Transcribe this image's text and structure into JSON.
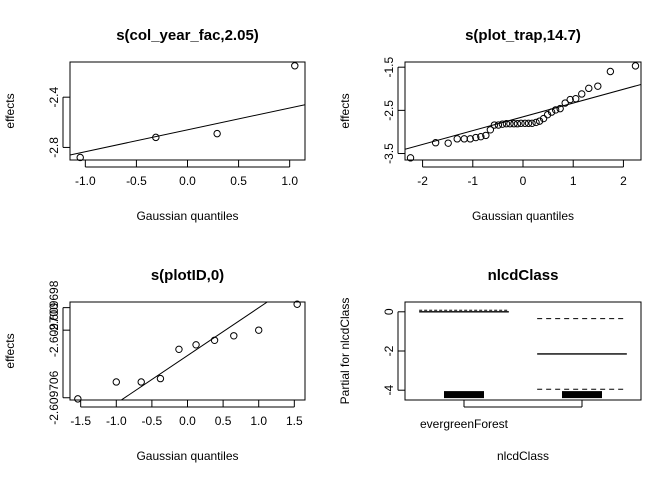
{
  "chart_data": [
    {
      "type": "scatter",
      "title": "s(col_year_fac,2.05)",
      "xlabel": "Gaussian quantiles",
      "ylabel": "effects",
      "xlim": [
        -1.15,
        1.15
      ],
      "ylim": [
        -2.9,
        -2.12
      ],
      "xticks": [
        -1.0,
        -0.5,
        0.0,
        0.5,
        1.0
      ],
      "xtick_labels": [
        "-1.0",
        "-0.5",
        "0.0",
        "0.5",
        "1.0"
      ],
      "yticks": [
        -2.8,
        -2.4
      ],
      "ytick_labels": [
        "-2.8",
        "-2.4"
      ],
      "points": [
        {
          "x": -1.05,
          "y": -2.88
        },
        {
          "x": -0.31,
          "y": -2.72
        },
        {
          "x": 0.29,
          "y": -2.69
        },
        {
          "x": 1.05,
          "y": -2.15
        }
      ],
      "reference_line": {
        "x1": -1.15,
        "y1": -2.86,
        "x2": 1.15,
        "y2": -2.46
      }
    },
    {
      "type": "scatter",
      "title": "s(plot_trap,14.7)",
      "xlabel": "Gaussian quantiles",
      "ylabel": "effects",
      "xlim": [
        -2.35,
        2.35
      ],
      "ylim": [
        -3.65,
        -1.38
      ],
      "xticks": [
        -2,
        -1,
        0,
        1,
        2
      ],
      "xtick_labels": [
        "-2",
        "-1",
        "0",
        "1",
        "2"
      ],
      "yticks": [
        -3.5,
        -2.5,
        -1.5
      ],
      "ytick_labels": [
        "-3.5",
        "-2.5",
        "-1.5"
      ],
      "points": [
        {
          "x": -2.24,
          "y": -3.6
        },
        {
          "x": -1.74,
          "y": -3.25
        },
        {
          "x": -1.49,
          "y": -3.26
        },
        {
          "x": -1.31,
          "y": -3.16
        },
        {
          "x": -1.17,
          "y": -3.16
        },
        {
          "x": -1.05,
          "y": -3.16
        },
        {
          "x": -0.94,
          "y": -3.13
        },
        {
          "x": -0.84,
          "y": -3.11
        },
        {
          "x": -0.74,
          "y": -3.08
        },
        {
          "x": -0.65,
          "y": -2.95
        },
        {
          "x": -0.57,
          "y": -2.84
        },
        {
          "x": -0.49,
          "y": -2.84
        },
        {
          "x": -0.41,
          "y": -2.82
        },
        {
          "x": -0.33,
          "y": -2.81
        },
        {
          "x": -0.26,
          "y": -2.81
        },
        {
          "x": -0.18,
          "y": -2.81
        },
        {
          "x": -0.11,
          "y": -2.81
        },
        {
          "x": -0.04,
          "y": -2.8
        },
        {
          "x": 0.04,
          "y": -2.8
        },
        {
          "x": 0.11,
          "y": -2.8
        },
        {
          "x": 0.18,
          "y": -2.8
        },
        {
          "x": 0.26,
          "y": -2.78
        },
        {
          "x": 0.33,
          "y": -2.75
        },
        {
          "x": 0.41,
          "y": -2.69
        },
        {
          "x": 0.49,
          "y": -2.6
        },
        {
          "x": 0.57,
          "y": -2.54
        },
        {
          "x": 0.65,
          "y": -2.49
        },
        {
          "x": 0.74,
          "y": -2.46
        },
        {
          "x": 0.84,
          "y": -2.33
        },
        {
          "x": 0.94,
          "y": -2.25
        },
        {
          "x": 1.05,
          "y": -2.23
        },
        {
          "x": 1.17,
          "y": -2.12
        },
        {
          "x": 1.31,
          "y": -1.99
        },
        {
          "x": 1.49,
          "y": -1.94
        },
        {
          "x": 1.74,
          "y": -1.6
        },
        {
          "x": 2.24,
          "y": -1.47
        }
      ],
      "reference_line": {
        "x1": -2.35,
        "y1": -3.4,
        "x2": 2.35,
        "y2": -1.9
      }
    },
    {
      "type": "scatter",
      "title": "s(plotID,0)",
      "xlabel": "Gaussian quantiles",
      "ylabel": "effects",
      "xlim": [
        -1.65,
        1.65
      ],
      "ylim": [
        -2.6097062,
        -2.6096975
      ],
      "xticks": [
        -1.5,
        -1.0,
        -0.5,
        0.0,
        0.5,
        1.0,
        1.5
      ],
      "xtick_labels": [
        "-1.5",
        "-1.0",
        "-0.5",
        "0.0",
        "0.5",
        "1.0",
        "1.5"
      ],
      "yticks": [
        -2.609706,
        -2.6097,
        -2.609698
      ],
      "ytick_labels": [
        "-2.609706",
        "-2.609700",
        "-2.609698"
      ],
      "points": [
        {
          "x": -1.54,
          "y": -2.6097061
        },
        {
          "x": -1.0,
          "y": -2.6097046
        },
        {
          "x": -0.65,
          "y": -2.6097046
        },
        {
          "x": -0.38,
          "y": -2.6097043
        },
        {
          "x": -0.12,
          "y": -2.6097017
        },
        {
          "x": 0.12,
          "y": -2.6097013
        },
        {
          "x": 0.38,
          "y": -2.6097009
        },
        {
          "x": 0.65,
          "y": -2.6097005
        },
        {
          "x": 1.0,
          "y": -2.6097
        },
        {
          "x": 1.54,
          "y": -2.6096977
        }
      ],
      "reference_line": {
        "x1": -1.0,
        "y1": -2.6097065,
        "x2": 1.12,
        "y2": -2.6096975
      }
    },
    {
      "type": "termplot",
      "title": "nlcdClass",
      "xlabel": "nlcdClass",
      "ylabel": "Partial for nlcdClass",
      "ylim": [
        -4.5,
        0.5
      ],
      "yticks": [
        -4,
        -2,
        0
      ],
      "ytick_labels": [
        "-4",
        "-2",
        "0"
      ],
      "categories": [
        "evergreenForest",
        ""
      ],
      "effects": [
        {
          "category": "evergreenForest",
          "value": 0.0,
          "upper": 0.0,
          "lower": 0.0
        },
        {
          "category": "",
          "value": -2.15,
          "upper": -0.35,
          "lower": -3.95
        }
      ],
      "rug": [
        -4.25,
        -4.25
      ]
    }
  ]
}
